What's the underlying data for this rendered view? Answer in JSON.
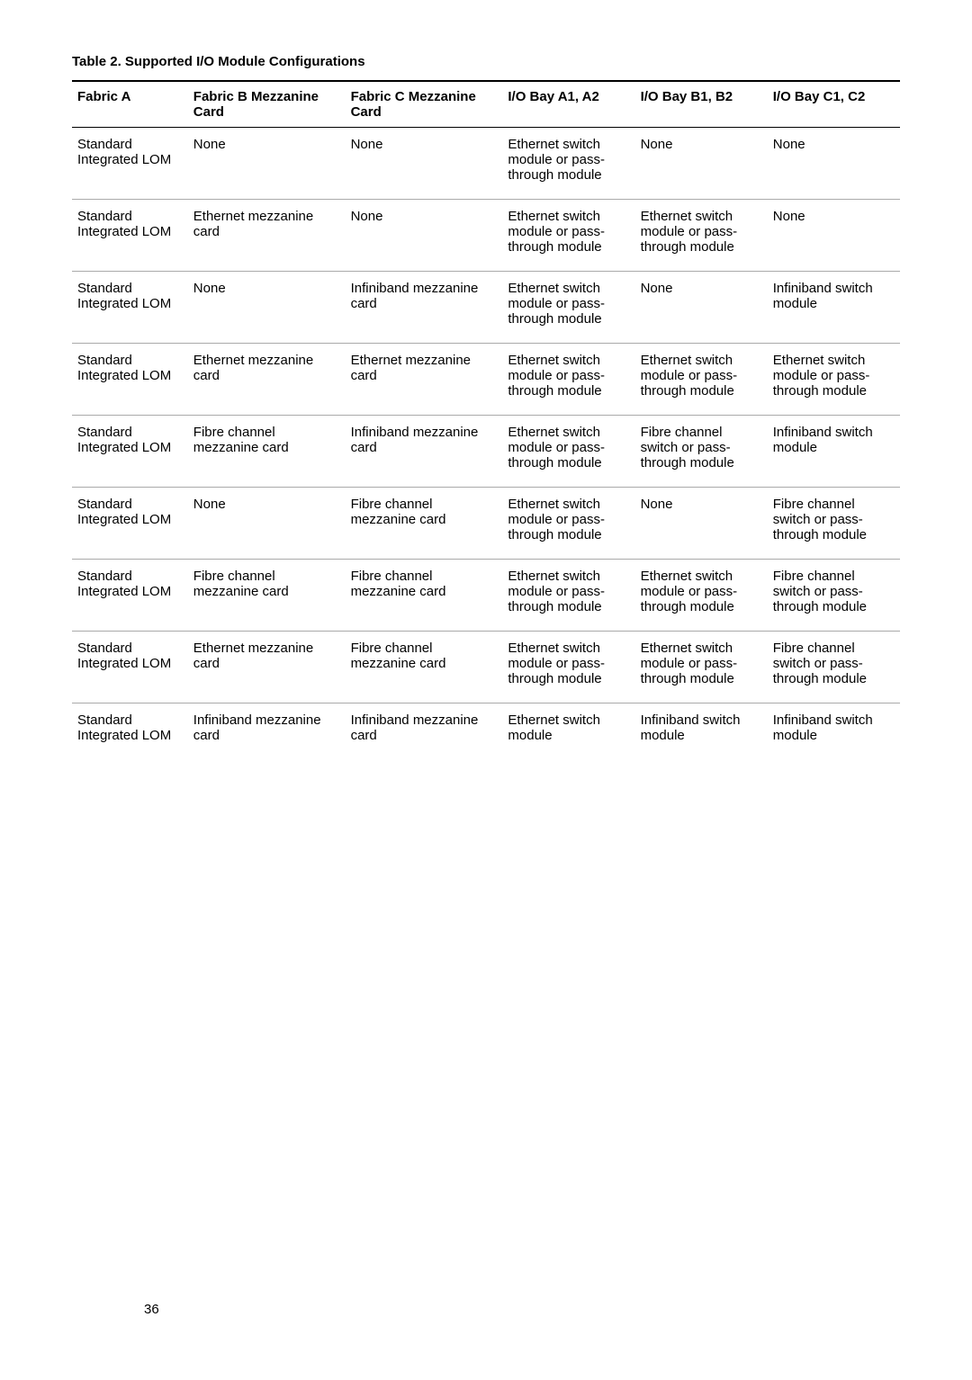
{
  "page_number": "36",
  "table": {
    "title": "Table 2. Supported I/O Module Configurations",
    "columns": [
      "Fabric A",
      "Fabric B Mezzanine Card",
      "Fabric C Mezzanine Card",
      "I/O Bay A1, A2",
      "I/O Bay B1, B2",
      "I/O Bay C1, C2"
    ],
    "rows": [
      {
        "a": "Standard Integrated LOM",
        "b": "None",
        "c": "None",
        "d": "Ethernet switch module or pass-through module",
        "e": "None",
        "f": "None"
      },
      {
        "a": "Standard Integrated LOM",
        "b": "Ethernet mezzanine card",
        "c": "None",
        "d": "Ethernet switch module or pass-through module",
        "e": "Ethernet switch module or pass-through module",
        "f": "None"
      },
      {
        "a": "Standard Integrated LOM",
        "b": "None",
        "c": "Infiniband mezzanine card",
        "d": "Ethernet switch module or pass-through module",
        "e": "None",
        "f": "Infiniband switch module"
      },
      {
        "a": "Standard Integrated LOM",
        "b": "Ethernet mezzanine card",
        "c": "Ethernet mezzanine card",
        "d": "Ethernet switch module or pass-through module",
        "e": "Ethernet switch module or pass-through module",
        "f": "Ethernet switch module or pass-through module"
      },
      {
        "a": "Standard Integrated LOM",
        "b": "Fibre channel mezzanine card",
        "c": "Infiniband mezzanine card",
        "d": "Ethernet switch module or pass-through module",
        "e": "Fibre channel switch or pass-through module",
        "f": "Infiniband switch module"
      },
      {
        "a": "Standard Integrated LOM",
        "b": "None",
        "c": "Fibre channel mezzanine card",
        "d": "Ethernet switch module or pass-through module",
        "e": "None",
        "f": "Fibre channel switch or pass-through module"
      },
      {
        "a": "Standard Integrated LOM",
        "b": "Fibre channel mezzanine card",
        "c": "Fibre channel mezzanine card",
        "d": "Ethernet switch module or pass-through module",
        "e": "Ethernet switch module or pass-through module",
        "f": "Fibre channel switch or pass-through module"
      },
      {
        "a": "Standard Integrated LOM",
        "b": "Ethernet mezzanine card",
        "c": "Fibre channel mezzanine card",
        "d": "Ethernet switch module or pass-through module",
        "e": "Ethernet switch module or pass-through module",
        "f": "Fibre channel switch or pass-through module"
      },
      {
        "a": "Standard Integrated LOM",
        "b": "Infiniband mezzanine card",
        "c": "Infiniband mezzanine card",
        "d": "Ethernet switch module",
        "e": "Infiniband switch module",
        "f": "Infiniband switch module"
      }
    ]
  }
}
